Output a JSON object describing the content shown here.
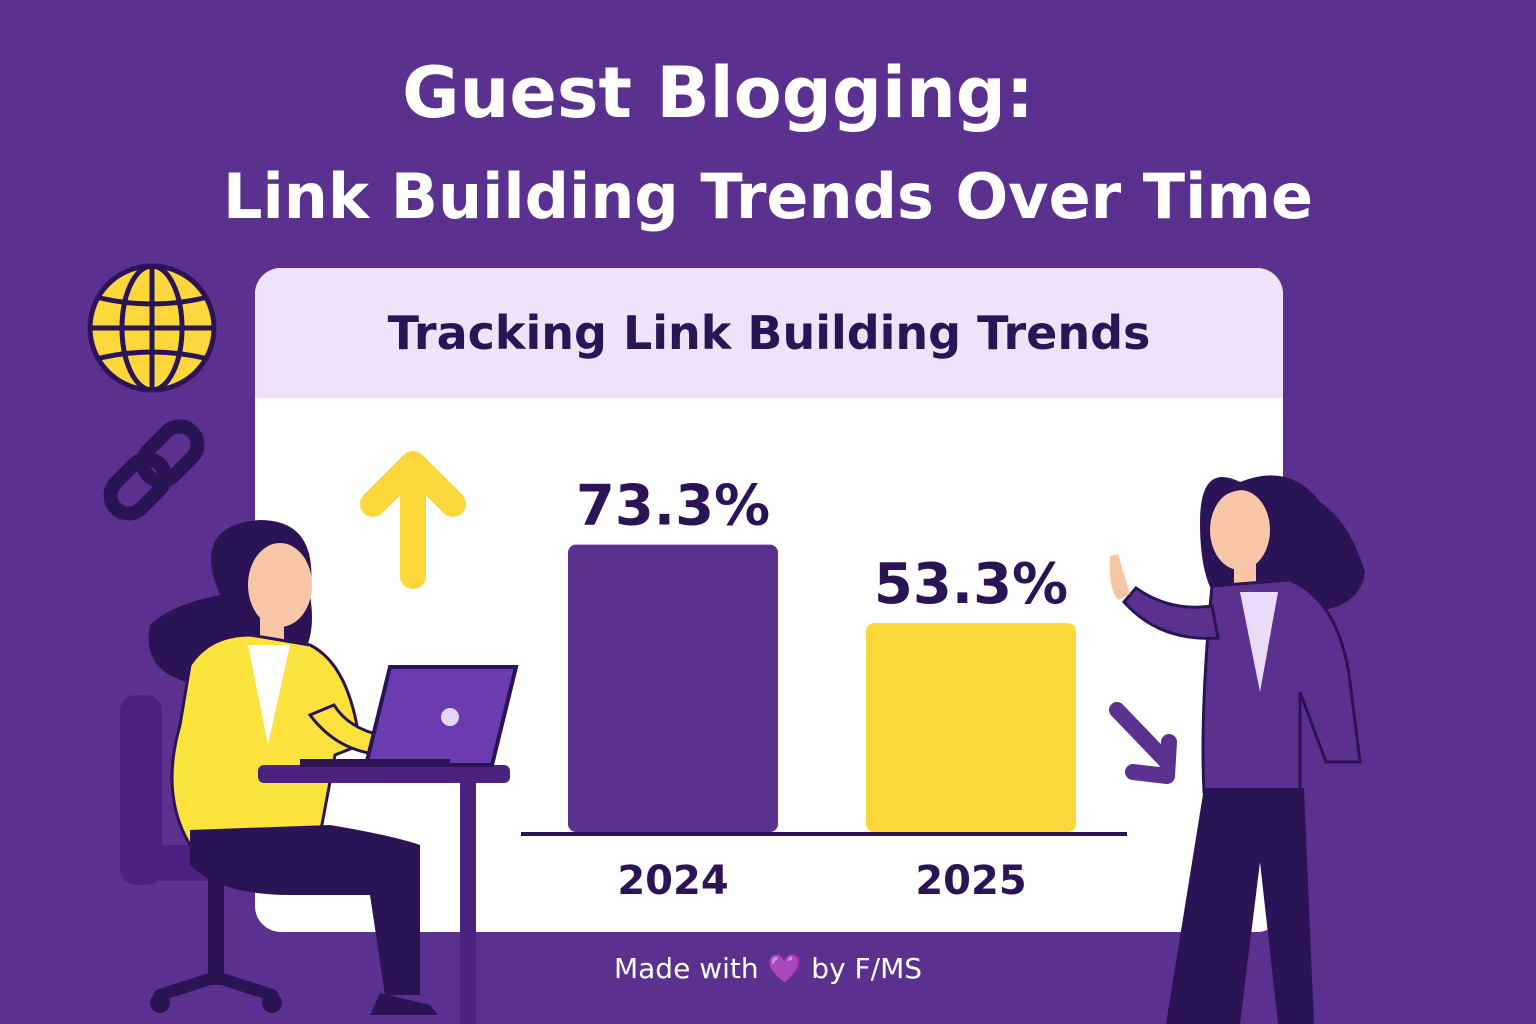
{
  "title_line1": "Guest Blogging:",
  "title_line2": "Link Building Trends Over Time",
  "card_title": "Tracking Link Building Trends",
  "footer": {
    "prefix": "Made with",
    "heart": "💜",
    "suffix": "by F/MS"
  },
  "colors": {
    "background": "#5b3190",
    "purple_bar": "#5b3190",
    "yellow_bar": "#fcd73c",
    "dark_text": "#2b1455",
    "card_header": "#f1e2fb"
  },
  "icons": [
    "globe-icon",
    "chain-link-icon",
    "up-arrow-icon",
    "down-arrow-icon"
  ],
  "chart_data": {
    "type": "bar",
    "title": "Tracking Link Building Trends",
    "categories": [
      "2024",
      "2025"
    ],
    "values": [
      73.3,
      53.3
    ],
    "value_labels": [
      "73.3%",
      "53.3%"
    ],
    "bar_colors": [
      "#5b3190",
      "#fcd73c"
    ],
    "ylim": [
      0,
      100
    ],
    "grid": false,
    "xlabel": "",
    "ylabel": ""
  }
}
